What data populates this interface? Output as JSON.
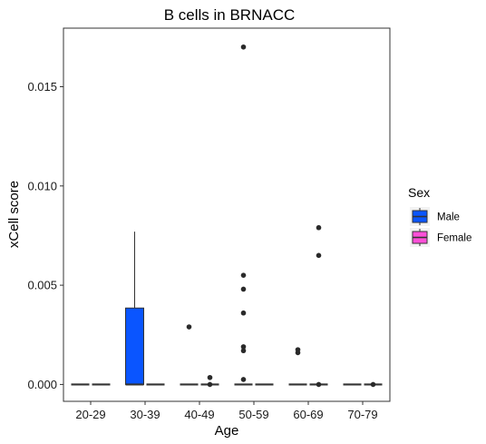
{
  "chart_data": {
    "type": "box",
    "title": "B cells in BRNACC",
    "xlabel": "Age",
    "ylabel": "xCell score",
    "categories": [
      "20-29",
      "30-39",
      "40-49",
      "50-59",
      "60-69",
      "70-79"
    ],
    "ylim": [
      -0.00085,
      0.01795
    ],
    "yticks": [
      0,
      0.005,
      0.01,
      0.015
    ],
    "ytick_labels": [
      "0.000",
      "0.005",
      "0.010",
      "0.015"
    ],
    "grid": false,
    "legend": {
      "title": "Sex",
      "position": "right",
      "entries": [
        {
          "name": "Male",
          "color": "#0a55ff"
        },
        {
          "name": "Female",
          "color": "#ff4fd8"
        }
      ]
    },
    "series": [
      {
        "name": "Male",
        "color": "#0a55ff",
        "boxes": [
          {
            "q1": 0,
            "median": 0,
            "q3": 0,
            "lower": 0,
            "upper": 0,
            "outliers": []
          },
          {
            "q1": 0,
            "median": 0,
            "q3": 0.00385,
            "lower": 0,
            "upper": 0.0077,
            "outliers": []
          },
          {
            "q1": 0,
            "median": 0,
            "q3": 0,
            "lower": 0,
            "upper": 0,
            "outliers": [
              0.0029
            ]
          },
          {
            "q1": 0,
            "median": 0,
            "q3": 0,
            "lower": 0,
            "upper": 0,
            "outliers": [
              0.00025,
              0.0017,
              0.0048,
              0.0055,
              0.0036,
              0.0019,
              0.017
            ]
          },
          {
            "q1": 0,
            "median": 0,
            "q3": 0,
            "lower": 0,
            "upper": 0,
            "outliers": [
              0.00175,
              0.0016
            ]
          },
          {
            "q1": 0,
            "median": 0,
            "q3": 0,
            "lower": 0,
            "upper": 0,
            "outliers": []
          }
        ]
      },
      {
        "name": "Female",
        "color": "#ff4fd8",
        "boxes": [
          {
            "q1": 0,
            "median": 0,
            "q3": 0,
            "lower": 0,
            "upper": 0,
            "outliers": []
          },
          {
            "q1": 0,
            "median": 0,
            "q3": 0,
            "lower": 0,
            "upper": 0,
            "outliers": []
          },
          {
            "q1": 0,
            "median": 0,
            "q3": 0,
            "lower": 0,
            "upper": 0,
            "outliers": [
              0.00035,
              0.0
            ]
          },
          {
            "q1": 0,
            "median": 0,
            "q3": 0,
            "lower": 0,
            "upper": 0,
            "outliers": []
          },
          {
            "q1": 0,
            "median": 0,
            "q3": 0,
            "lower": 0,
            "upper": 0,
            "outliers": [
              0.0079,
              0.0065,
              0.0
            ]
          },
          {
            "q1": 0,
            "median": 0,
            "q3": 0,
            "lower": 0,
            "upper": 0,
            "outliers": [
              0.0
            ]
          }
        ]
      }
    ]
  }
}
